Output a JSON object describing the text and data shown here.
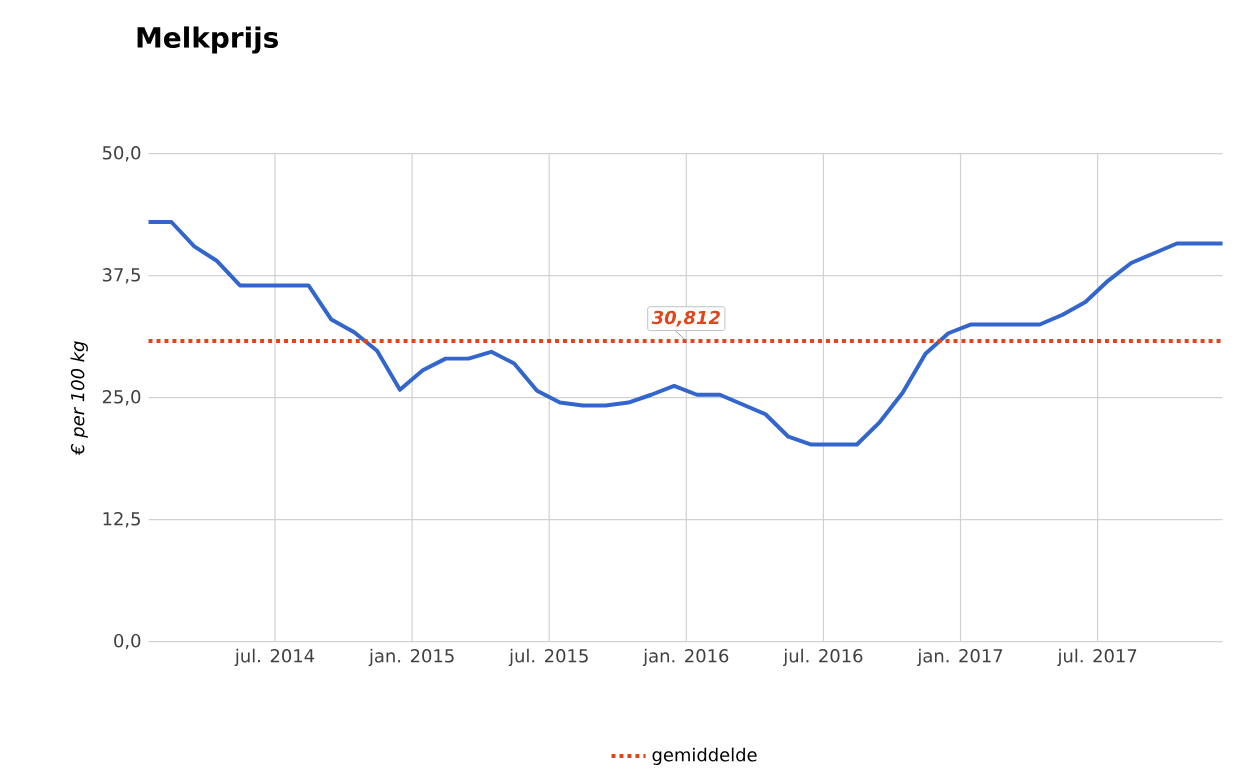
{
  "chart_data": {
    "type": "line",
    "title": "Melkprijs",
    "ylabel": "€ per 100 kg",
    "x": [
      "2014-01-15",
      "2014-02-15",
      "2014-03-15",
      "2014-04-15",
      "2014-05-15",
      "2014-06-15",
      "2014-07-15",
      "2014-08-15",
      "2014-09-15",
      "2014-10-15",
      "2014-11-15",
      "2014-12-15",
      "2015-01-15",
      "2015-02-15",
      "2015-03-15",
      "2015-04-15",
      "2015-05-15",
      "2015-06-15",
      "2015-07-15",
      "2015-08-15",
      "2015-09-15",
      "2015-10-15",
      "2015-11-15",
      "2015-12-15",
      "2016-01-15",
      "2016-02-15",
      "2016-03-15",
      "2016-04-15",
      "2016-05-15",
      "2016-06-15",
      "2016-07-15",
      "2016-08-15",
      "2016-09-15",
      "2016-10-15",
      "2016-11-15",
      "2016-12-15",
      "2017-01-15",
      "2017-02-15",
      "2017-03-15",
      "2017-04-15",
      "2017-05-15",
      "2017-06-15",
      "2017-07-15",
      "2017-08-15",
      "2017-09-15",
      "2017-10-15",
      "2017-11-15",
      "2017-12-15"
    ],
    "series": [
      {
        "color": "#3366cc",
        "values": [
          43,
          43,
          40.5,
          39,
          36.5,
          36.5,
          36.5,
          36.5,
          33,
          31.7,
          29.8,
          25.8,
          27.8,
          29,
          29,
          29.7,
          28.5,
          25.7,
          24.5,
          24.2,
          24.2,
          24.5,
          25.3,
          26.2,
          25.3,
          25.3,
          24.3,
          23.3,
          21,
          20.2,
          20.2,
          20.2,
          22.5,
          25.5,
          29.5,
          31.6,
          32.5,
          32.5,
          32.5,
          32.5,
          33.5,
          34.8,
          37,
          38.8,
          39.8,
          40.8,
          40.8,
          40.8
        ]
      }
    ],
    "xlim": [
      "2014-01-15",
      "2017-12-15"
    ],
    "xticks": [
      {
        "value": "2014-07",
        "label": "jul. 2014"
      },
      {
        "value": "2015-01",
        "label": "jan. 2015"
      },
      {
        "value": "2015-07",
        "label": "jul. 2015"
      },
      {
        "value": "2016-01",
        "label": "jan. 2016"
      },
      {
        "value": "2016-07",
        "label": "jul. 2016"
      },
      {
        "value": "2017-01",
        "label": "jan. 2017"
      },
      {
        "value": "2017-07",
        "label": "jul. 2017"
      }
    ],
    "ylim": [
      0,
      50
    ],
    "yticks": [
      {
        "value": 0,
        "label": "0,0"
      },
      {
        "value": 12.5,
        "label": "12,5"
      },
      {
        "value": 25,
        "label": "25,0"
      },
      {
        "value": 37.5,
        "label": "37,5"
      },
      {
        "value": 50,
        "label": "50,0"
      }
    ],
    "grid": true,
    "legend": "bottom",
    "ref_lines": [
      {
        "axis": "y",
        "value": 30.812,
        "label": "gemiddelde",
        "color": "#e0461c",
        "line_style": "dotted"
      }
    ],
    "annotations": [
      {
        "text": "30,812",
        "x": "2016-01",
        "y": 30.812
      }
    ]
  }
}
